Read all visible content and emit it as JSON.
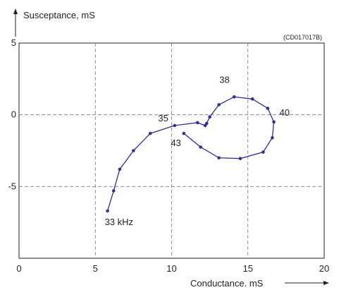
{
  "chart_data": {
    "type": "line",
    "reference_code": "(CD017017B)",
    "xlabel": "Conductance. mS",
    "ylabel": "Susceptance, mS",
    "xlim": [
      0,
      20
    ],
    "ylim": [
      -10,
      5
    ],
    "xticks": [
      0,
      5,
      10,
      15,
      20
    ],
    "yticks": [
      5,
      0,
      -5
    ],
    "x_tick_labels": [
      "0",
      "5",
      "10",
      "15",
      "20"
    ],
    "y_tick_labels": [
      "5",
      "0",
      "-5"
    ],
    "grid": true,
    "line_color": "#2e3192",
    "series": [
      {
        "x": [
          5.8,
          6.2,
          6.6,
          7.5,
          8.6,
          10.2,
          11.7,
          12.2,
          12.3,
          12.5,
          13.1,
          14.1,
          15.3,
          16.3,
          16.7,
          16.6,
          16.0,
          14.5,
          13.1,
          11.9,
          10.8
        ],
        "y": [
          -6.7,
          -5.3,
          -3.8,
          -2.5,
          -1.3,
          -0.75,
          -0.55,
          -0.75,
          -0.6,
          -0.15,
          0.7,
          1.25,
          1.1,
          0.45,
          -0.5,
          -1.6,
          -2.6,
          -3.05,
          -3.0,
          -2.25,
          -1.3
        ]
      }
    ],
    "annotations": [
      {
        "text": "33 kHz",
        "x": 5.8,
        "y": -6.7
      },
      {
        "text": "35",
        "x": 10.2,
        "y": -0.75
      },
      {
        "text": "38",
        "x": 14.1,
        "y": 1.25
      },
      {
        "text": "40",
        "x": 16.7,
        "y": -0.5
      },
      {
        "text": "43",
        "x": 10.8,
        "y": -1.3
      }
    ]
  }
}
